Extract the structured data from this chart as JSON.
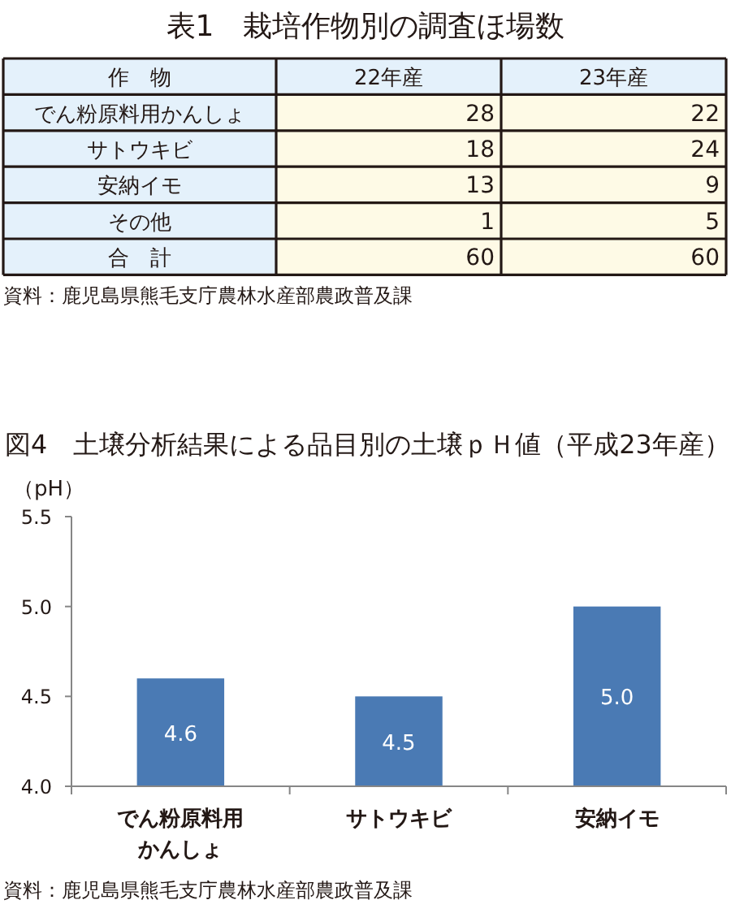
{
  "chart_data": [
    {
      "type": "other",
      "title": "表1　栽培作物別の調査ほ場数",
      "xlabel": "作　物",
      "categories": [
        "でん粉原料用かんしょ",
        "サトウキビ",
        "安納イモ",
        "その他",
        "合　計"
      ],
      "series": [
        {
          "name": "22年産",
          "values": [
            28,
            18,
            13,
            1,
            60
          ]
        },
        {
          "name": "23年産",
          "values": [
            22,
            24,
            9,
            5,
            60
          ]
        }
      ],
      "data_labels": true,
      "annotations": [
        "資料：鹿児島県熊毛支庁農林水産部農政普及課"
      ]
    },
    {
      "type": "bar",
      "title": "図4　土壌分析結果による品目別の土壌ｐＨ値（平成23年産）",
      "ylabel": "（pH）",
      "categories": [
        "でん粉原料用かんしょ",
        "サトウキビ",
        "安納イモ"
      ],
      "values": [
        4.6,
        4.5,
        5.0
      ],
      "color": "#4a7ab4",
      "value_labels": [
        "4.6",
        "4.5",
        "5.0"
      ],
      "ylim": [
        4,
        5.5
      ],
      "yticks": [
        {
          "value": 4,
          "label": "4.0"
        },
        {
          "value": 4.5,
          "label": "4.5"
        },
        {
          "value": 5,
          "label": "5.0"
        },
        {
          "value": 5.5,
          "label": "5.5"
        }
      ],
      "annotations": [
        "資料：鹿児島県熊毛支庁農林水産部農政普及課"
      ]
    }
  ]
}
